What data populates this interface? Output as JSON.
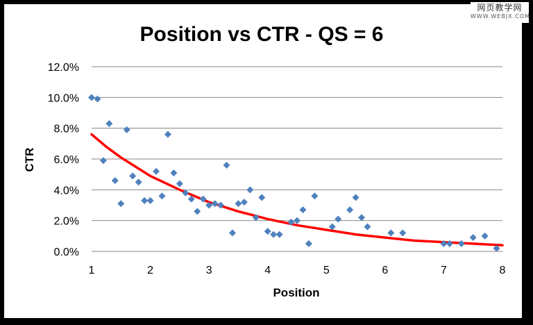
{
  "watermark": {
    "main": "网页教学网",
    "sub": "WWW.WEBJX.COM"
  },
  "colors": {
    "points": "#4F81BD",
    "trend": "#FF0000",
    "grid": "#868686"
  },
  "chart_data": {
    "type": "scatter",
    "title": "Position vs CTR - QS = 6",
    "xlabel": "Position",
    "ylabel": "CTR",
    "xlim": [
      1,
      8
    ],
    "ylim": [
      0,
      0.12
    ],
    "x_ticks": [
      "1",
      "2",
      "3",
      "4",
      "5",
      "6",
      "7",
      "8"
    ],
    "y_ticks": [
      "0.0%",
      "2.0%",
      "4.0%",
      "6.0%",
      "8.0%",
      "10.0%",
      "12.0%"
    ],
    "grid": "horizontal",
    "legend": "none",
    "series": [
      {
        "type": "scatter",
        "points": [
          [
            1.0,
            0.1
          ],
          [
            1.1,
            0.099
          ],
          [
            1.2,
            0.059
          ],
          [
            1.3,
            0.083
          ],
          [
            1.4,
            0.046
          ],
          [
            1.5,
            0.031
          ],
          [
            1.6,
            0.079
          ],
          [
            1.7,
            0.049
          ],
          [
            1.8,
            0.045
          ],
          [
            1.9,
            0.033
          ],
          [
            2.0,
            0.033
          ],
          [
            2.1,
            0.052
          ],
          [
            2.2,
            0.036
          ],
          [
            2.3,
            0.076
          ],
          [
            2.4,
            0.051
          ],
          [
            2.5,
            0.044
          ],
          [
            2.6,
            0.038
          ],
          [
            2.7,
            0.034
          ],
          [
            2.8,
            0.026
          ],
          [
            2.9,
            0.034
          ],
          [
            3.0,
            0.03
          ],
          [
            3.1,
            0.031
          ],
          [
            3.2,
            0.03
          ],
          [
            3.3,
            0.056
          ],
          [
            3.4,
            0.012
          ],
          [
            3.5,
            0.031
          ],
          [
            3.6,
            0.032
          ],
          [
            3.7,
            0.04
          ],
          [
            3.8,
            0.022
          ],
          [
            3.9,
            0.035
          ],
          [
            4.0,
            0.013
          ],
          [
            4.1,
            0.011
          ],
          [
            4.2,
            0.011
          ],
          [
            4.4,
            0.019
          ],
          [
            4.5,
            0.02
          ],
          [
            4.6,
            0.027
          ],
          [
            4.7,
            0.005
          ],
          [
            4.8,
            0.036
          ],
          [
            5.1,
            0.016
          ],
          [
            5.2,
            0.021
          ],
          [
            5.4,
            0.027
          ],
          [
            5.5,
            0.035
          ],
          [
            5.6,
            0.022
          ],
          [
            5.7,
            0.016
          ],
          [
            6.1,
            0.012
          ],
          [
            6.3,
            0.012
          ],
          [
            7.0,
            0.005
          ],
          [
            7.1,
            0.005
          ],
          [
            7.3,
            0.005
          ],
          [
            7.5,
            0.009
          ],
          [
            7.7,
            0.01
          ],
          [
            7.9,
            0.002
          ]
        ]
      },
      {
        "type": "trendline",
        "points": [
          [
            1.0,
            0.076
          ],
          [
            1.25,
            0.068
          ],
          [
            1.5,
            0.061
          ],
          [
            1.75,
            0.055
          ],
          [
            2.0,
            0.049
          ],
          [
            2.5,
            0.04
          ],
          [
            3.0,
            0.032
          ],
          [
            3.5,
            0.026
          ],
          [
            4.0,
            0.021
          ],
          [
            4.5,
            0.017
          ],
          [
            5.0,
            0.014
          ],
          [
            5.5,
            0.011
          ],
          [
            6.0,
            0.009
          ],
          [
            6.5,
            0.007
          ],
          [
            7.0,
            0.006
          ],
          [
            7.5,
            0.005
          ],
          [
            8.0,
            0.004
          ]
        ]
      }
    ]
  }
}
